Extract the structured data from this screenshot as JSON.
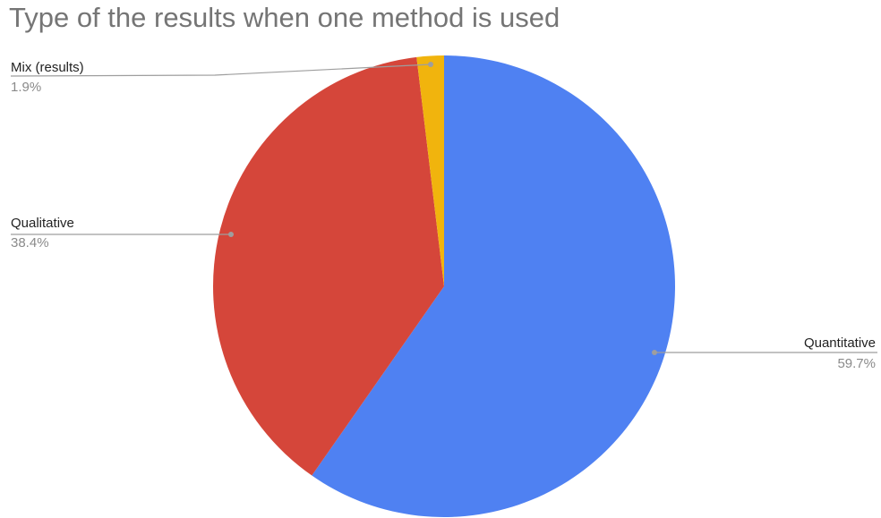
{
  "chart_data": {
    "type": "pie",
    "title": "Type of the results when one method is used",
    "slices": [
      {
        "label": "Quantitative",
        "value": 59.7,
        "value_label": "59.7%",
        "color": "#4f81f2"
      },
      {
        "label": "Qualitative",
        "value": 38.4,
        "value_label": "38.4%",
        "color": "#d5463a"
      },
      {
        "label": "Mix (results)",
        "value": 1.9,
        "value_label": "1.9%",
        "color": "#f1b40d"
      }
    ],
    "start_angle_deg": 0,
    "direction": "clockwise",
    "legend": "none",
    "label_line_color": "#9e9e9e"
  }
}
